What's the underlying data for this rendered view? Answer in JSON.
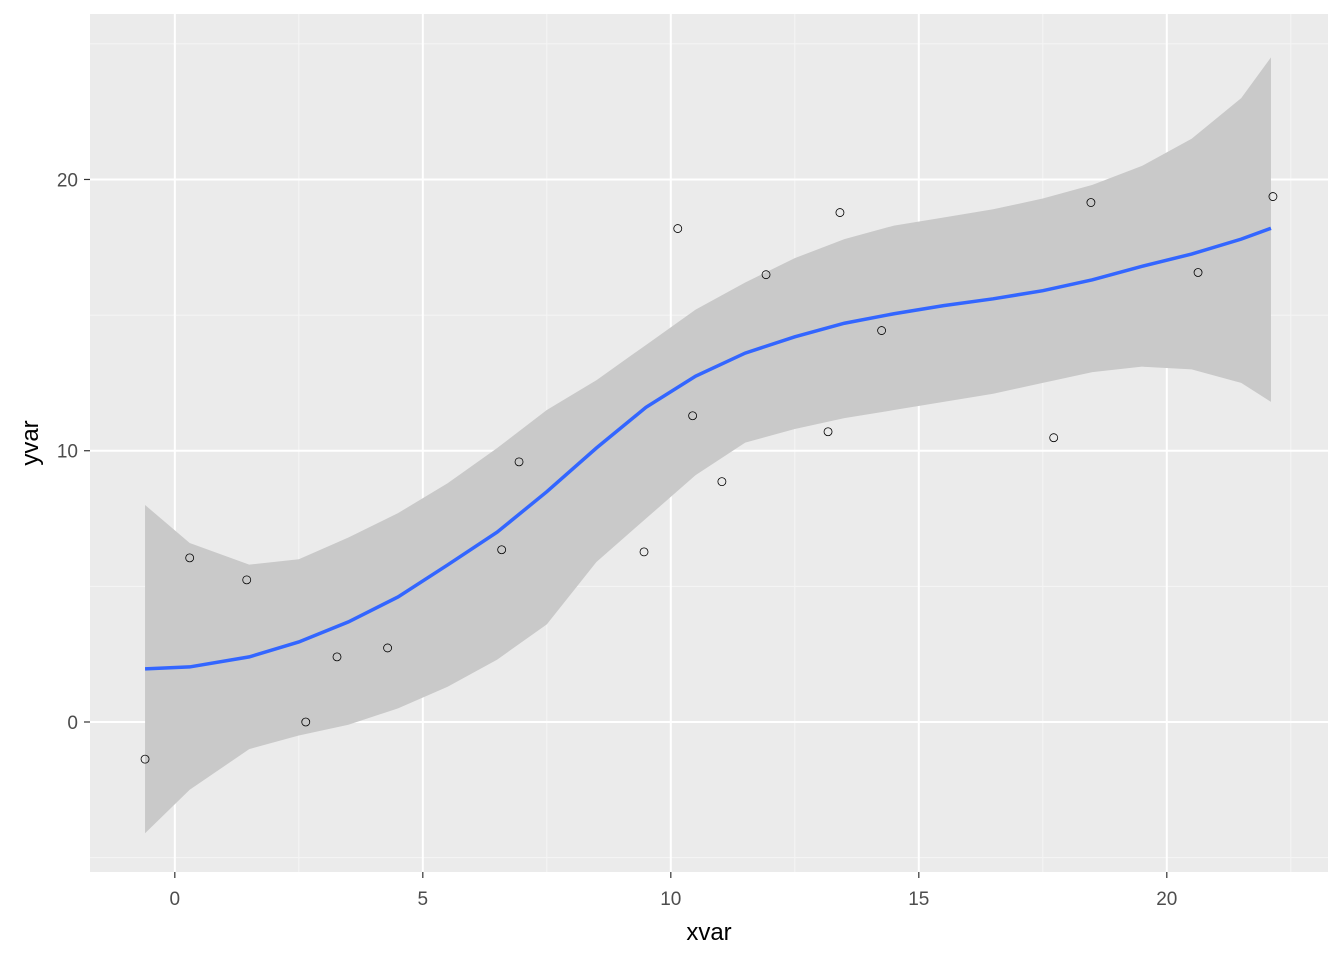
{
  "chart_data": {
    "type": "scatter",
    "xlabel": "xvar",
    "ylabel": "yvar",
    "xlim": [
      -1.71,
      23.25
    ],
    "ylim": [
      -5.53,
      26.1
    ],
    "xticks": [
      0,
      5,
      10,
      15,
      20
    ],
    "yticks": [
      0,
      10,
      20
    ],
    "xtick_labels": [
      "0",
      "5",
      "10",
      "15",
      "20"
    ],
    "ytick_labels": [
      "0",
      "10",
      "20"
    ],
    "grid": true,
    "points": {
      "x": [
        -0.6,
        0.3,
        1.45,
        2.64,
        3.27,
        4.29,
        6.59,
        6.94,
        9.46,
        10.14,
        10.44,
        11.03,
        11.92,
        13.17,
        13.41,
        14.25,
        17.72,
        18.47,
        20.63,
        22.14
      ],
      "y": [
        -1.37,
        6.05,
        5.24,
        0.0,
        2.4,
        2.73,
        6.35,
        9.59,
        6.27,
        18.19,
        11.29,
        8.86,
        16.49,
        10.7,
        18.78,
        14.43,
        10.48,
        19.15,
        16.57,
        19.37
      ]
    },
    "smooth": {
      "x": [
        -0.6,
        0.3,
        1.5,
        2.5,
        3.5,
        4.5,
        5.5,
        6.5,
        7.5,
        8.5,
        9.5,
        10.5,
        11.5,
        12.5,
        13.5,
        14.5,
        15.5,
        16.5,
        17.5,
        18.5,
        19.5,
        20.5,
        21.5,
        22.1
      ],
      "y": [
        1.96,
        2.03,
        2.4,
        2.95,
        3.69,
        4.61,
        5.79,
        7.0,
        8.49,
        10.1,
        11.6,
        12.75,
        13.6,
        14.2,
        14.7,
        15.05,
        15.35,
        15.6,
        15.9,
        16.3,
        16.8,
        17.25,
        17.8,
        18.2
      ],
      "upper": [
        8.0,
        6.6,
        5.8,
        6.0,
        6.8,
        7.7,
        8.8,
        10.1,
        11.5,
        12.6,
        13.9,
        15.2,
        16.2,
        17.1,
        17.8,
        18.3,
        18.6,
        18.9,
        19.3,
        19.8,
        20.5,
        21.5,
        23.0,
        24.5
      ],
      "lower": [
        -4.1,
        -2.5,
        -1.0,
        -0.5,
        -0.1,
        0.5,
        1.3,
        2.3,
        3.6,
        5.9,
        7.5,
        9.1,
        10.3,
        10.8,
        11.2,
        11.5,
        11.8,
        12.1,
        12.5,
        12.9,
        13.1,
        13.0,
        12.5,
        11.8
      ]
    },
    "colors": {
      "panel": "#ebebeb",
      "band": "#c9c9c9",
      "line": "#3366ff",
      "point": "#000000"
    }
  }
}
